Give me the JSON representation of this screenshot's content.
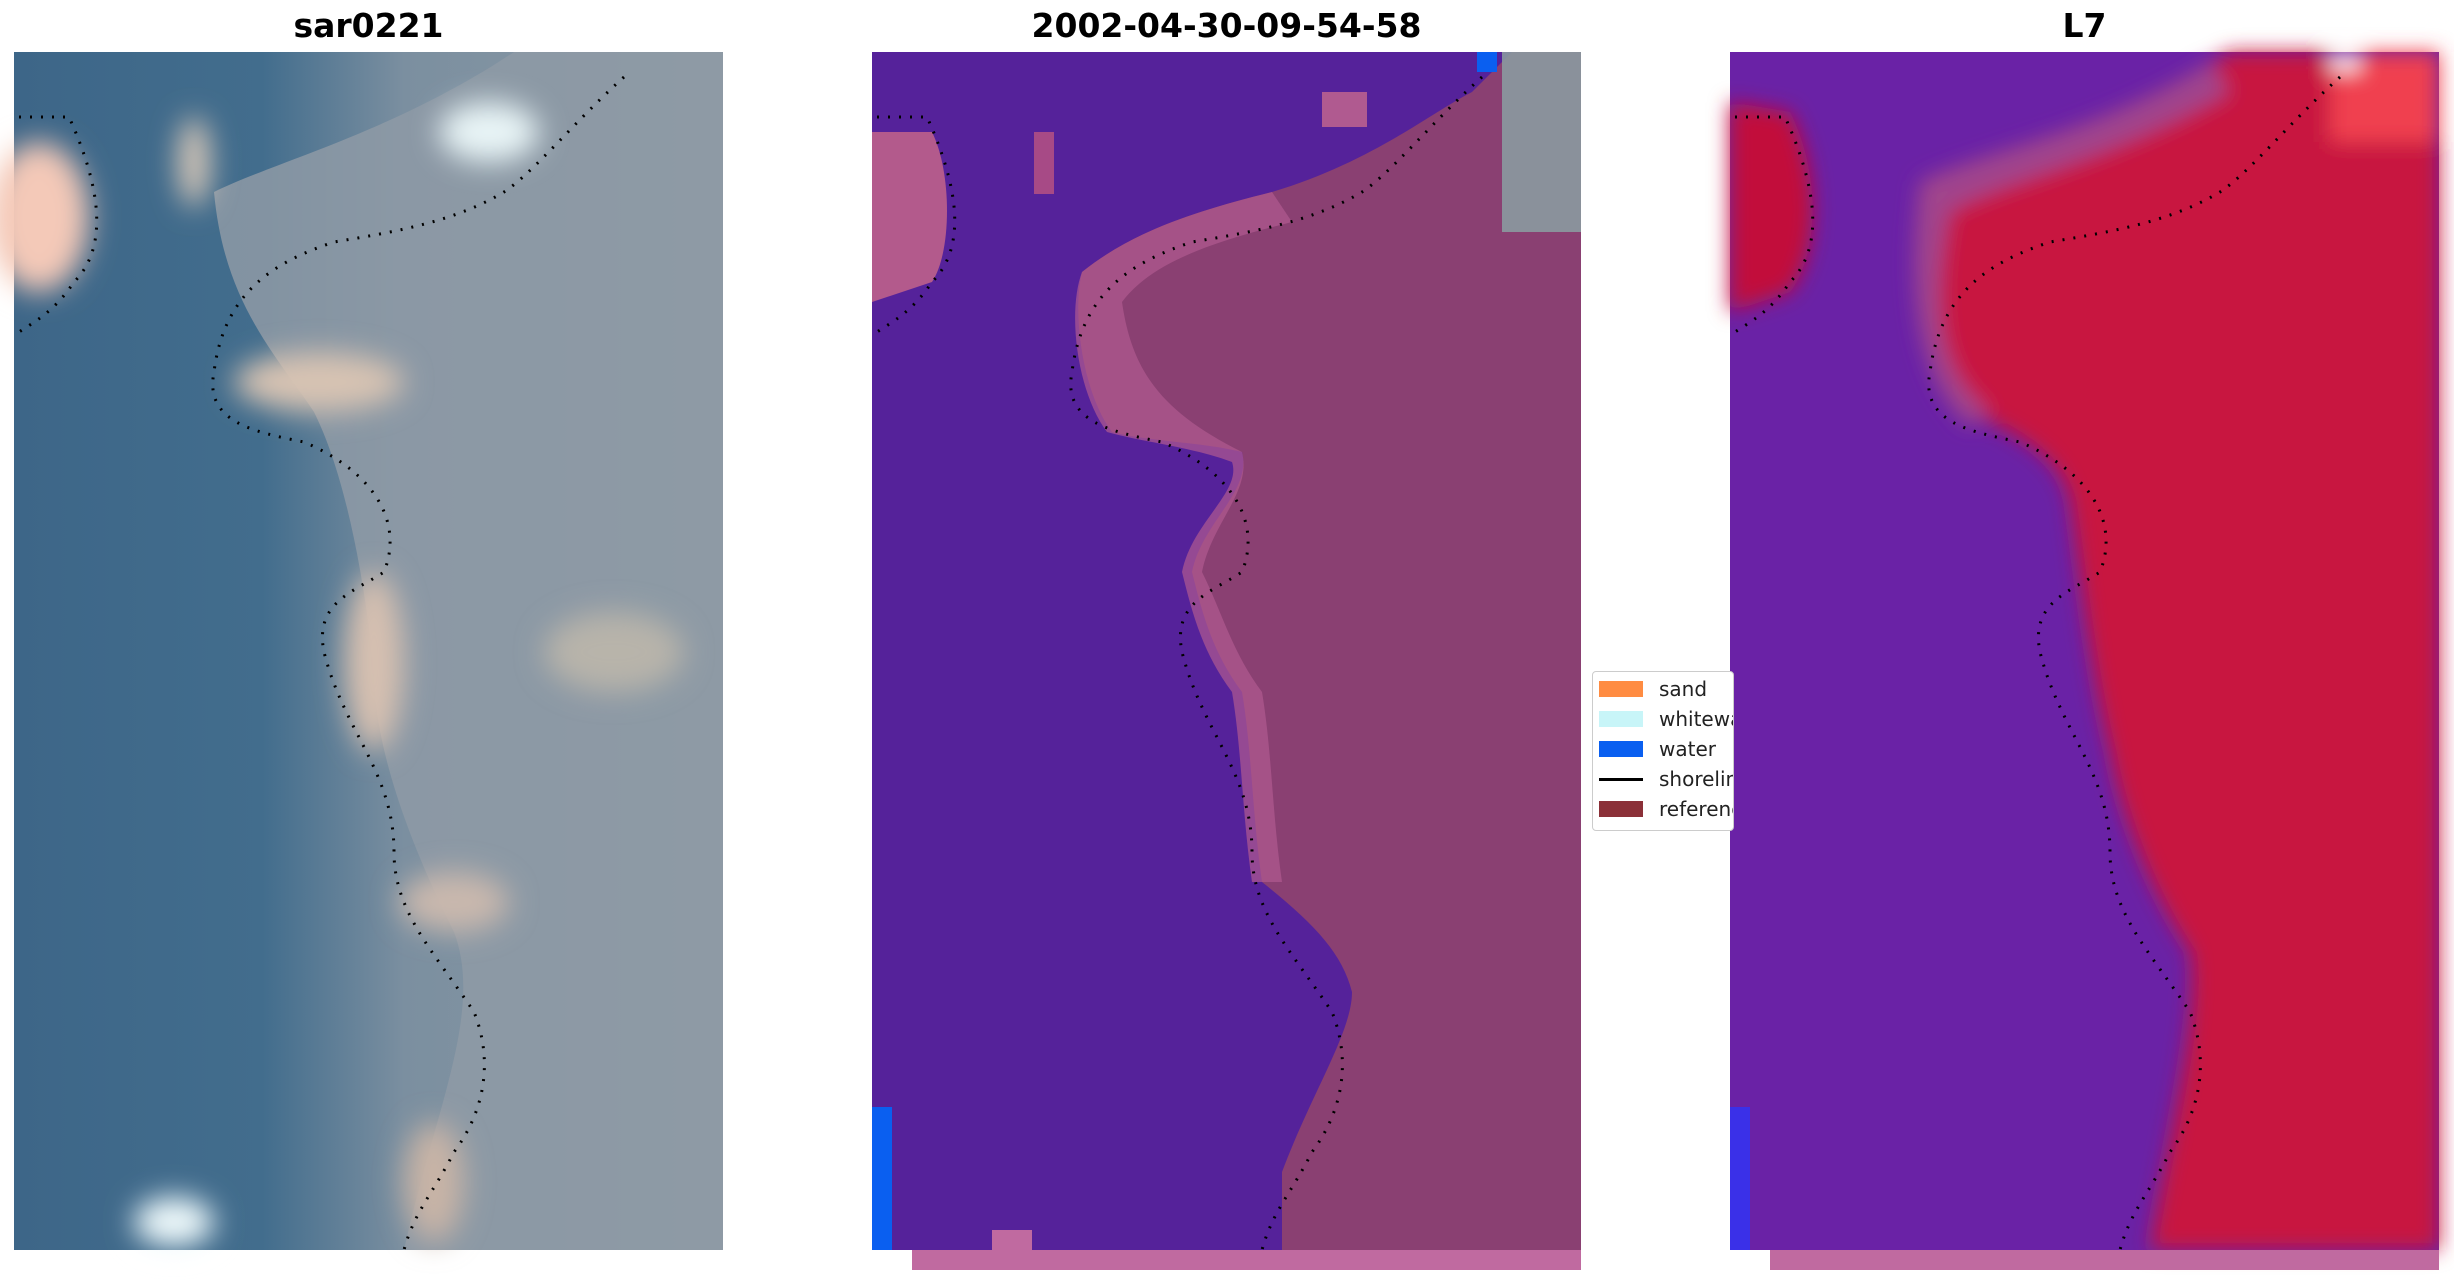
{
  "panels": [
    {
      "title": "sar0221",
      "kind": "rgb"
    },
    {
      "title": "2002-04-30-09-54-58",
      "kind": "classified"
    },
    {
      "title": "L7",
      "kind": "index"
    }
  ],
  "legend": {
    "placement": "center-right of middle panel",
    "items": [
      {
        "label": "sand",
        "color": "#ff8c42",
        "type": "patch"
      },
      {
        "label": "whitewater",
        "color": "#c8f5f8",
        "type": "patch"
      },
      {
        "label": "water",
        "color": "#0a5ff0",
        "type": "patch"
      },
      {
        "label": "shoreline",
        "color": "#000000",
        "type": "line"
      },
      {
        "label": "reference",
        "color": "#8b3038",
        "type": "patch"
      }
    ]
  },
  "colors": {
    "ocean_rgb": "#3f6b8f",
    "land_rgb": "#8b9aa8",
    "bright_patch": "#f2d6c9",
    "water_class": "#54229a",
    "land_class": "#8a4070",
    "index_low": "#6a1fa8",
    "index_high": "#c81440",
    "bottom_strip": "#c06aa0",
    "shoreline_dots": "#000000"
  }
}
